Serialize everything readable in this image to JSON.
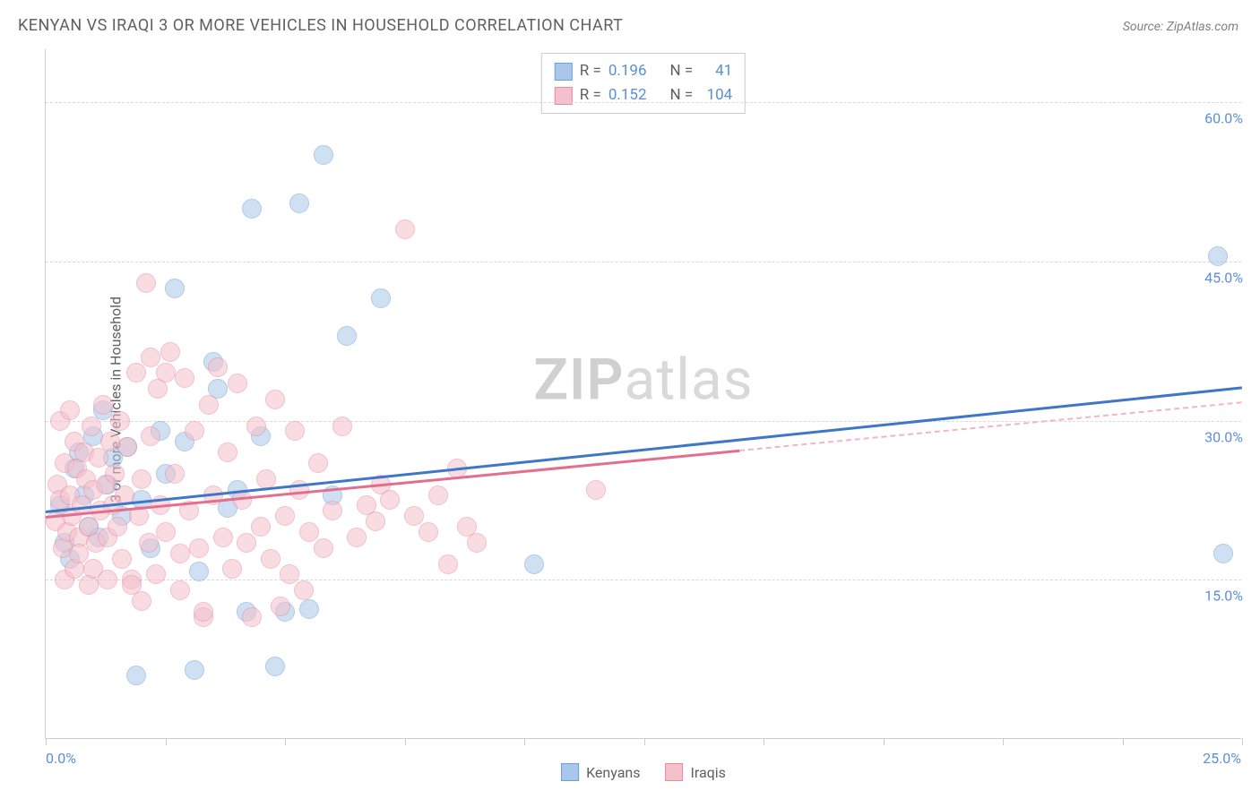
{
  "title": "KENYAN VS IRAQI 3 OR MORE VEHICLES IN HOUSEHOLD CORRELATION CHART",
  "source": "Source: ZipAtlas.com",
  "ylabel": "3 or more Vehicles in Household",
  "watermark_strong": "ZIP",
  "watermark_rest": "atlas",
  "chart": {
    "type": "scatter-with-trend",
    "xlim": [
      0,
      25
    ],
    "ylim": [
      0,
      65
    ],
    "x_tick_positions": [
      0,
      2.5,
      5,
      7.5,
      10,
      12.5,
      15,
      17.5,
      20,
      22.5,
      25
    ],
    "x_tick_labels": {
      "0": "0.0%",
      "25": "25.0%"
    },
    "y_grid_positions": [
      15,
      30,
      45,
      60
    ],
    "y_grid_labels": {
      "15": "15.0%",
      "30": "30.0%",
      "45": "45.0%",
      "60": "60.0%"
    },
    "background_color": "#ffffff",
    "grid_color": "#d8d8d8",
    "axis_color": "#cccccc",
    "tick_label_color": "#5b8fd6",
    "point_radius": 10,
    "point_opacity": 0.55,
    "series": [
      {
        "name": "Kenyans",
        "color_fill": "#a9c7eb",
        "color_stroke": "#6f9fd8",
        "R": "0.196",
        "N": "41",
        "trend": {
          "x1": 0,
          "y1": 21.5,
          "x2": 25,
          "y2": 33.2,
          "stroke": "#3e76c8",
          "width": 3,
          "dash_extend": false
        },
        "points": [
          [
            0.3,
            22.0
          ],
          [
            0.4,
            18.5
          ],
          [
            0.5,
            17.0
          ],
          [
            0.6,
            25.5
          ],
          [
            0.7,
            27.0
          ],
          [
            0.9,
            20.0
          ],
          [
            1.0,
            28.5
          ],
          [
            1.1,
            19.0
          ],
          [
            1.3,
            24.0
          ],
          [
            1.4,
            26.5
          ],
          [
            1.6,
            21.0
          ],
          [
            1.7,
            27.5
          ],
          [
            1.9,
            6.0
          ],
          [
            2.0,
            22.5
          ],
          [
            2.2,
            18.0
          ],
          [
            2.5,
            25.0
          ],
          [
            2.7,
            42.5
          ],
          [
            2.9,
            28.0
          ],
          [
            3.1,
            6.5
          ],
          [
            3.2,
            15.8
          ],
          [
            3.5,
            35.5
          ],
          [
            3.8,
            21.8
          ],
          [
            4.0,
            23.5
          ],
          [
            4.2,
            12.0
          ],
          [
            4.3,
            50.0
          ],
          [
            4.5,
            28.5
          ],
          [
            4.8,
            6.8
          ],
          [
            5.0,
            12.0
          ],
          [
            5.3,
            50.5
          ],
          [
            5.5,
            12.2
          ],
          [
            5.8,
            55.0
          ],
          [
            6.0,
            23.0
          ],
          [
            6.3,
            38.0
          ],
          [
            7.0,
            41.5
          ],
          [
            10.2,
            16.5
          ],
          [
            24.5,
            45.5
          ],
          [
            24.6,
            17.5
          ],
          [
            1.2,
            31.0
          ],
          [
            2.4,
            29.0
          ],
          [
            0.8,
            23.0
          ],
          [
            3.6,
            33.0
          ]
        ]
      },
      {
        "name": "Iraqis",
        "color_fill": "#f4c0cb",
        "color_stroke": "#e88ba2",
        "R": "0.152",
        "N": "104",
        "trend": {
          "x1": 0,
          "y1": 21.0,
          "x2": 25,
          "y2": 31.8,
          "stroke": "#e36f8c",
          "width": 3,
          "dash_extend_after": 14.5,
          "dash_color": "#efb6c4"
        },
        "points": [
          [
            0.2,
            20.5
          ],
          [
            0.25,
            24.0
          ],
          [
            0.3,
            22.5
          ],
          [
            0.35,
            18.0
          ],
          [
            0.4,
            26.0
          ],
          [
            0.45,
            19.5
          ],
          [
            0.5,
            23.0
          ],
          [
            0.55,
            21.0
          ],
          [
            0.6,
            28.0
          ],
          [
            0.65,
            25.5
          ],
          [
            0.7,
            19.0
          ],
          [
            0.75,
            22.0
          ],
          [
            0.8,
            27.0
          ],
          [
            0.85,
            24.5
          ],
          [
            0.9,
            20.0
          ],
          [
            0.95,
            29.5
          ],
          [
            1.0,
            23.5
          ],
          [
            1.05,
            18.5
          ],
          [
            1.1,
            26.5
          ],
          [
            1.15,
            21.5
          ],
          [
            1.2,
            31.5
          ],
          [
            1.25,
            24.0
          ],
          [
            1.3,
            19.0
          ],
          [
            1.35,
            28.0
          ],
          [
            1.4,
            22.0
          ],
          [
            1.45,
            25.0
          ],
          [
            1.5,
            20.0
          ],
          [
            1.55,
            30.0
          ],
          [
            1.6,
            17.0
          ],
          [
            1.65,
            23.0
          ],
          [
            1.7,
            27.5
          ],
          [
            1.8,
            15.0
          ],
          [
            1.9,
            34.5
          ],
          [
            1.95,
            21.0
          ],
          [
            2.0,
            24.5
          ],
          [
            2.1,
            43.0
          ],
          [
            2.15,
            18.5
          ],
          [
            2.2,
            28.5
          ],
          [
            2.3,
            15.5
          ],
          [
            2.35,
            33.0
          ],
          [
            2.4,
            22.0
          ],
          [
            2.5,
            19.5
          ],
          [
            2.6,
            36.5
          ],
          [
            2.7,
            25.0
          ],
          [
            2.8,
            17.5
          ],
          [
            2.9,
            34.0
          ],
          [
            3.0,
            21.5
          ],
          [
            3.1,
            29.0
          ],
          [
            3.2,
            18.0
          ],
          [
            3.3,
            11.5
          ],
          [
            3.4,
            31.5
          ],
          [
            3.5,
            23.0
          ],
          [
            3.6,
            35.0
          ],
          [
            3.7,
            19.0
          ],
          [
            3.8,
            27.0
          ],
          [
            3.9,
            16.0
          ],
          [
            4.0,
            33.5
          ],
          [
            4.1,
            22.5
          ],
          [
            4.2,
            18.5
          ],
          [
            4.3,
            11.5
          ],
          [
            4.4,
            29.5
          ],
          [
            4.5,
            20.0
          ],
          [
            4.6,
            24.5
          ],
          [
            4.7,
            17.0
          ],
          [
            4.8,
            32.0
          ],
          [
            5.0,
            21.0
          ],
          [
            5.1,
            15.5
          ],
          [
            5.2,
            29.0
          ],
          [
            5.3,
            23.5
          ],
          [
            5.5,
            19.5
          ],
          [
            5.7,
            26.0
          ],
          [
            5.8,
            18.0
          ],
          [
            6.0,
            21.5
          ],
          [
            6.2,
            29.5
          ],
          [
            6.5,
            19.0
          ],
          [
            6.7,
            22.0
          ],
          [
            6.9,
            20.5
          ],
          [
            7.0,
            24.0
          ],
          [
            7.2,
            22.5
          ],
          [
            7.5,
            48.0
          ],
          [
            7.7,
            21.0
          ],
          [
            8.0,
            19.5
          ],
          [
            8.2,
            23.0
          ],
          [
            8.4,
            16.5
          ],
          [
            8.6,
            25.5
          ],
          [
            8.8,
            20.0
          ],
          [
            9.0,
            18.5
          ],
          [
            11.5,
            23.5
          ],
          [
            3.3,
            12.0
          ],
          [
            2.8,
            14.0
          ],
          [
            1.8,
            14.5
          ],
          [
            2.0,
            13.0
          ],
          [
            0.4,
            15.0
          ],
          [
            0.6,
            16.0
          ],
          [
            4.9,
            12.5
          ],
          [
            5.4,
            14.0
          ],
          [
            0.3,
            30.0
          ],
          [
            0.5,
            31.0
          ],
          [
            0.7,
            17.5
          ],
          [
            0.9,
            14.5
          ],
          [
            1.0,
            16.0
          ],
          [
            1.3,
            15.0
          ],
          [
            2.2,
            36.0
          ],
          [
            2.5,
            34.5
          ]
        ]
      }
    ],
    "stat_legend_labels": {
      "R": "R =",
      "N": "N ="
    },
    "bottom_legend": [
      {
        "label": "Kenyans",
        "fill": "#a9c7eb",
        "stroke": "#6f9fd8"
      },
      {
        "label": "Iraqis",
        "fill": "#f4c0cb",
        "stroke": "#e88ba2"
      }
    ]
  }
}
